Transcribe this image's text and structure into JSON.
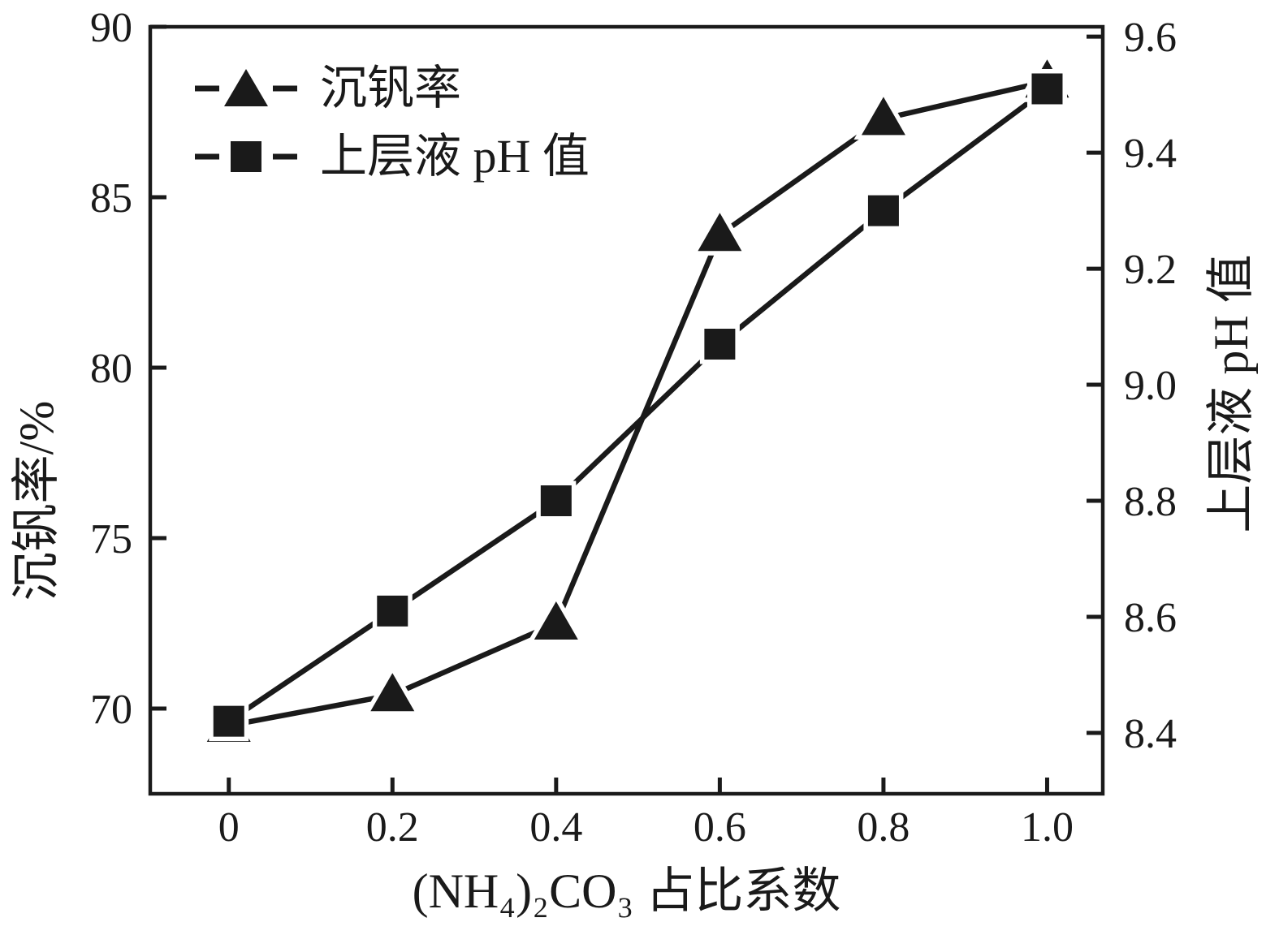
{
  "figure": {
    "background_color": "#ffffff",
    "ink_color": "#1a1a1a"
  },
  "chart_data": {
    "type": "line",
    "title": "",
    "xlabel": "(NH₄)₂CO₃ 占比系数",
    "ylabel_left": "沉钒率/%",
    "ylabel_right": "上层液 pH 值",
    "ink_color": "#1a1a1a",
    "background_color": "#ffffff",
    "grid": false,
    "legend_position": "top-left",
    "x": [
      0,
      0.2,
      0.4,
      0.6,
      0.8,
      1.0
    ],
    "x_tick_labels": [
      "0",
      "0.2",
      "0.4",
      "0.6",
      "0.8",
      "1.0"
    ],
    "x_axis": {
      "min": -0.096,
      "max": 1.068,
      "tick_values": [
        0,
        0.2,
        0.4,
        0.6,
        0.8,
        1.0
      ]
    },
    "left_axis": {
      "label": "沉钒率/%",
      "min": 67.5,
      "max": 90,
      "tick_values": [
        70,
        75,
        80,
        85,
        90
      ],
      "ticks": [
        "70",
        "75",
        "80",
        "85",
        "90"
      ]
    },
    "right_axis": {
      "label": "上层液 pH 值",
      "min": 8.295,
      "max": 9.617,
      "tick_values": [
        8.4,
        8.6,
        8.8,
        9.0,
        9.2,
        9.4,
        9.6
      ],
      "ticks": [
        "8.4",
        "8.6",
        "8.8",
        "9.0",
        "9.2",
        "9.4",
        "9.6"
      ]
    },
    "series": [
      {
        "id": "precipitation-rate",
        "name": "沉钒率",
        "axis": "left",
        "marker": "triangle",
        "values": [
          69.5,
          70.4,
          72.5,
          83.9,
          87.3,
          88.4
        ]
      },
      {
        "id": "supernatant-ph",
        "name": "上层液 pH 值",
        "axis": "right",
        "marker": "square",
        "values": [
          8.42,
          8.61,
          8.8,
          9.07,
          9.3,
          9.51
        ]
      }
    ]
  }
}
